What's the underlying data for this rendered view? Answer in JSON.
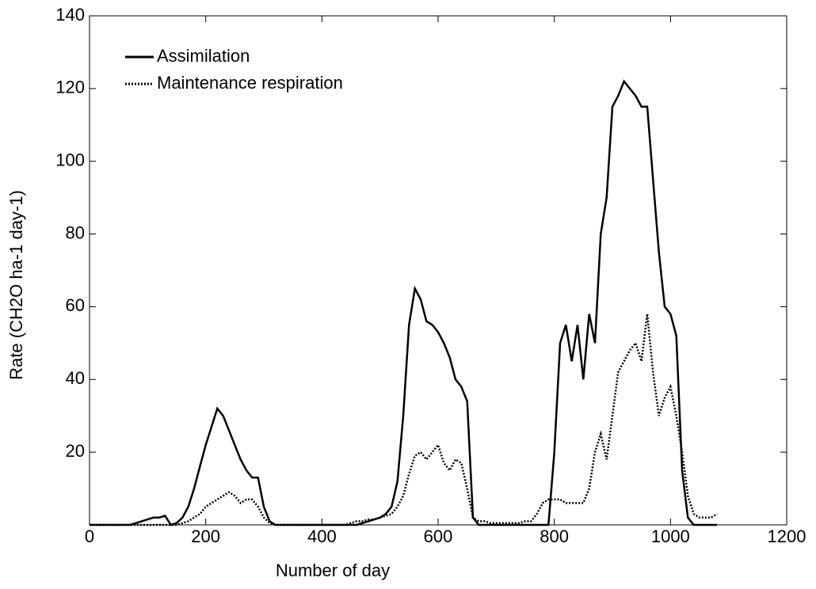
{
  "chart_data": {
    "type": "line",
    "xlabel": "Number of day",
    "ylabel": "Rate (CH2O ha-1 day-1)",
    "x": [
      0,
      10,
      20,
      30,
      40,
      50,
      60,
      70,
      80,
      90,
      100,
      110,
      120,
      130,
      140,
      150,
      160,
      170,
      180,
      190,
      200,
      210,
      220,
      230,
      240,
      250,
      260,
      270,
      280,
      290,
      300,
      310,
      320,
      330,
      340,
      350,
      360,
      370,
      380,
      390,
      400,
      410,
      420,
      430,
      440,
      450,
      460,
      470,
      480,
      490,
      500,
      510,
      520,
      530,
      540,
      550,
      560,
      570,
      580,
      590,
      600,
      610,
      620,
      630,
      640,
      650,
      660,
      670,
      680,
      690,
      700,
      710,
      720,
      730,
      740,
      750,
      760,
      770,
      780,
      790,
      800,
      810,
      820,
      830,
      840,
      850,
      860,
      870,
      880,
      890,
      900,
      910,
      920,
      930,
      940,
      950,
      960,
      970,
      980,
      990,
      1000,
      1010,
      1020,
      1030,
      1040,
      1050,
      1060,
      1070,
      1080
    ],
    "series": [
      {
        "name": "Assimilation",
        "color": "#000000",
        "dash": "solid",
        "values": [
          0,
          0,
          0,
          0,
          0,
          0,
          0,
          0,
          0.5,
          1,
          1.5,
          2,
          2,
          2.5,
          0,
          0.5,
          2,
          5,
          10,
          16,
          22,
          27,
          32,
          30,
          26,
          22,
          18,
          15,
          13,
          13,
          5,
          1,
          0,
          0,
          0,
          0,
          0,
          0,
          0,
          0,
          0,
          0,
          0,
          0,
          0,
          0,
          0,
          0.5,
          1,
          1.5,
          2,
          3,
          5,
          12,
          30,
          55,
          65,
          62,
          56,
          55,
          53,
          50,
          46,
          40,
          38,
          34,
          2,
          0,
          0,
          0,
          0,
          0,
          0,
          0,
          0,
          0,
          0,
          0,
          0,
          0,
          20,
          50,
          55,
          45,
          55,
          40,
          58,
          50,
          80,
          90,
          115,
          118,
          122,
          120,
          118,
          115,
          115,
          95,
          75,
          60,
          58,
          52,
          15,
          2,
          0,
          0,
          0,
          0,
          0
        ]
      },
      {
        "name": "Maintenance respiration",
        "color": "#000000",
        "dash": "dotted",
        "values": [
          0,
          0,
          0,
          0,
          0,
          0,
          0,
          0,
          0,
          0,
          0,
          0,
          0,
          0,
          0,
          0,
          0.5,
          1,
          2,
          3,
          5,
          6,
          7,
          8,
          9,
          8,
          6,
          7,
          7,
          5,
          2,
          0.5,
          0,
          0,
          0,
          0,
          0,
          0,
          0,
          0,
          0,
          0,
          0,
          0,
          0,
          0.5,
          1,
          1,
          1.5,
          1.5,
          2,
          2.5,
          3,
          5,
          8,
          14,
          19,
          20,
          18,
          20,
          22,
          17,
          15,
          18,
          17,
          10,
          2,
          1,
          1,
          0.5,
          0.5,
          0.5,
          0.5,
          0.5,
          0.5,
          1,
          1,
          3,
          6,
          7,
          7,
          7,
          6,
          6,
          6,
          6,
          10,
          20,
          25,
          18,
          30,
          42,
          45,
          48,
          50,
          45,
          58,
          42,
          30,
          35,
          38,
          30,
          20,
          8,
          3,
          2,
          2,
          2,
          3
        ]
      }
    ],
    "xlim": [
      0,
      1200
    ],
    "xticks": [
      0,
      200,
      400,
      600,
      800,
      1000,
      1200
    ],
    "ylim": [
      0,
      140
    ],
    "yticks": [
      20,
      40,
      60,
      80,
      100,
      120,
      140
    ],
    "grid": false,
    "legend": "upper-left"
  }
}
